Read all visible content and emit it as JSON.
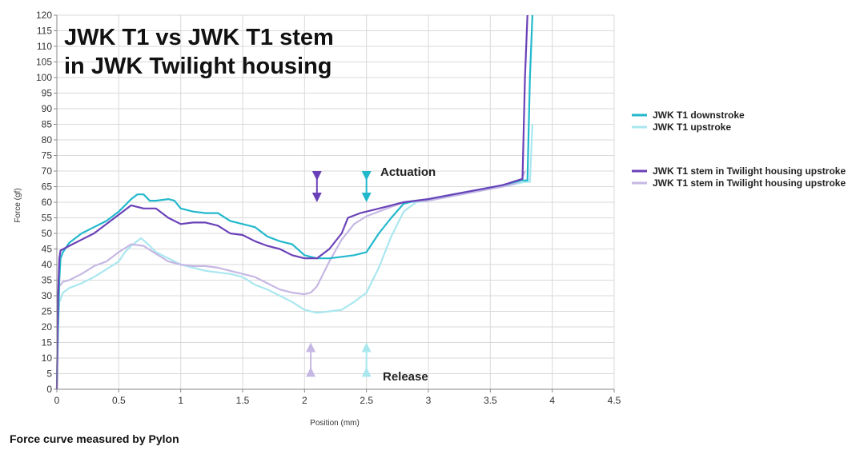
{
  "chart_data": {
    "type": "line",
    "title_lines": [
      "JWK T1 vs JWK T1 stem",
      "in JWK Twilight housing"
    ],
    "xlabel": "Position (mm)",
    "ylabel": "Force (gf)",
    "xlim": [
      0,
      4.5
    ],
    "ylim": [
      0,
      120
    ],
    "x_ticks": [
      "0",
      "0.5",
      "1",
      "1.5",
      "2",
      "2.5",
      "3",
      "3.5",
      "4",
      "4.5"
    ],
    "y_ticks": [
      "0",
      "5",
      "10",
      "15",
      "20",
      "25",
      "30",
      "35",
      "40",
      "45",
      "50",
      "55",
      "60",
      "65",
      "70",
      "75",
      "80",
      "85",
      "90",
      "95",
      "100",
      "105",
      "110",
      "115",
      "120"
    ],
    "grid": true,
    "legend_position": "right",
    "series": [
      {
        "name": "JWK T1 downstroke",
        "color": "#22b8cc",
        "points": [
          [
            0,
            2
          ],
          [
            0.01,
            20
          ],
          [
            0.02,
            35
          ],
          [
            0.03,
            42
          ],
          [
            0.05,
            44
          ],
          [
            0.1,
            47
          ],
          [
            0.2,
            50
          ],
          [
            0.3,
            52
          ],
          [
            0.4,
            54
          ],
          [
            0.5,
            57
          ],
          [
            0.55,
            59
          ],
          [
            0.6,
            61
          ],
          [
            0.65,
            62.5
          ],
          [
            0.7,
            62.5
          ],
          [
            0.75,
            60.5
          ],
          [
            0.8,
            60.5
          ],
          [
            0.9,
            61
          ],
          [
            0.95,
            60.5
          ],
          [
            1.0,
            58
          ],
          [
            1.1,
            57
          ],
          [
            1.2,
            56.5
          ],
          [
            1.3,
            56.5
          ],
          [
            1.4,
            54
          ],
          [
            1.5,
            53
          ],
          [
            1.6,
            52
          ],
          [
            1.7,
            49
          ],
          [
            1.8,
            47.5
          ],
          [
            1.9,
            46.5
          ],
          [
            2.0,
            43
          ],
          [
            2.1,
            42
          ],
          [
            2.2,
            42
          ],
          [
            2.3,
            42.5
          ],
          [
            2.4,
            43
          ],
          [
            2.5,
            44
          ],
          [
            2.6,
            50
          ],
          [
            2.7,
            55
          ],
          [
            2.8,
            59.5
          ],
          [
            2.9,
            60.5
          ],
          [
            3.0,
            61
          ],
          [
            3.2,
            62.5
          ],
          [
            3.4,
            64
          ],
          [
            3.6,
            65.5
          ],
          [
            3.75,
            67
          ],
          [
            3.8,
            67
          ],
          [
            3.82,
            100
          ],
          [
            3.84,
            120
          ]
        ]
      },
      {
        "name": "JWK T1 upstroke",
        "color": "#a9e7ef",
        "points": [
          [
            0,
            0
          ],
          [
            0.01,
            20
          ],
          [
            0.02,
            28
          ],
          [
            0.05,
            31
          ],
          [
            0.1,
            32.5
          ],
          [
            0.2,
            34
          ],
          [
            0.3,
            36
          ],
          [
            0.4,
            38.5
          ],
          [
            0.5,
            41
          ],
          [
            0.55,
            44
          ],
          [
            0.6,
            46
          ],
          [
            0.68,
            48.5
          ],
          [
            0.75,
            46
          ],
          [
            0.8,
            44
          ],
          [
            0.9,
            42
          ],
          [
            1.0,
            40
          ],
          [
            1.1,
            39
          ],
          [
            1.2,
            38
          ],
          [
            1.3,
            37.5
          ],
          [
            1.4,
            37
          ],
          [
            1.5,
            36
          ],
          [
            1.6,
            33.5
          ],
          [
            1.7,
            32
          ],
          [
            1.8,
            30
          ],
          [
            1.9,
            28
          ],
          [
            2.0,
            25.5
          ],
          [
            2.1,
            24.5
          ],
          [
            2.2,
            25
          ],
          [
            2.3,
            25.5
          ],
          [
            2.4,
            28
          ],
          [
            2.5,
            31
          ],
          [
            2.6,
            39
          ],
          [
            2.7,
            49
          ],
          [
            2.8,
            57
          ],
          [
            2.9,
            60
          ],
          [
            3.0,
            60.5
          ],
          [
            3.2,
            62
          ],
          [
            3.4,
            63.5
          ],
          [
            3.6,
            65
          ],
          [
            3.78,
            66.5
          ],
          [
            3.82,
            66.5
          ],
          [
            3.84,
            85
          ]
        ]
      },
      {
        "name": "JWK T1 stem in Twilight housing upstroke",
        "color": "#6a41b8",
        "points": [
          [
            0,
            0
          ],
          [
            0.01,
            30
          ],
          [
            0.02,
            42
          ],
          [
            0.03,
            44.5
          ],
          [
            0.1,
            46
          ],
          [
            0.2,
            48
          ],
          [
            0.3,
            50
          ],
          [
            0.4,
            53
          ],
          [
            0.5,
            56
          ],
          [
            0.6,
            59
          ],
          [
            0.7,
            58
          ],
          [
            0.8,
            58
          ],
          [
            0.9,
            55
          ],
          [
            1.0,
            53
          ],
          [
            1.1,
            53.5
          ],
          [
            1.2,
            53.5
          ],
          [
            1.3,
            52.5
          ],
          [
            1.4,
            50
          ],
          [
            1.5,
            49.5
          ],
          [
            1.6,
            47.5
          ],
          [
            1.7,
            46
          ],
          [
            1.8,
            45
          ],
          [
            1.9,
            43
          ],
          [
            2.0,
            42
          ],
          [
            2.1,
            42
          ],
          [
            2.2,
            45
          ],
          [
            2.3,
            50
          ],
          [
            2.35,
            55
          ],
          [
            2.45,
            56.5
          ],
          [
            2.55,
            57.5
          ],
          [
            2.65,
            58.5
          ],
          [
            2.8,
            60
          ],
          [
            3.0,
            61
          ],
          [
            3.2,
            62.5
          ],
          [
            3.4,
            64
          ],
          [
            3.6,
            65.5
          ],
          [
            3.72,
            67
          ],
          [
            3.76,
            67.5
          ],
          [
            3.78,
            100
          ],
          [
            3.8,
            120
          ]
        ]
      },
      {
        "name": "JWK T1 stem in Twilight housing upstroke",
        "color": "#c6b8e4",
        "points": [
          [
            0,
            0
          ],
          [
            0.01,
            25
          ],
          [
            0.02,
            33
          ],
          [
            0.05,
            34.5
          ],
          [
            0.1,
            35
          ],
          [
            0.2,
            37
          ],
          [
            0.3,
            39.5
          ],
          [
            0.4,
            41
          ],
          [
            0.5,
            44
          ],
          [
            0.6,
            46.5
          ],
          [
            0.7,
            46
          ],
          [
            0.8,
            43.5
          ],
          [
            0.9,
            41
          ],
          [
            1.0,
            40
          ],
          [
            1.1,
            39.5
          ],
          [
            1.2,
            39.5
          ],
          [
            1.3,
            39
          ],
          [
            1.4,
            38
          ],
          [
            1.5,
            37
          ],
          [
            1.6,
            36
          ],
          [
            1.7,
            34
          ],
          [
            1.8,
            32
          ],
          [
            1.9,
            31
          ],
          [
            2.0,
            30.5
          ],
          [
            2.05,
            31
          ],
          [
            2.1,
            33
          ],
          [
            2.2,
            41
          ],
          [
            2.3,
            48
          ],
          [
            2.4,
            53
          ],
          [
            2.5,
            55.5
          ],
          [
            2.6,
            57
          ],
          [
            2.7,
            58.5
          ],
          [
            2.8,
            60
          ],
          [
            3.0,
            60.5
          ],
          [
            3.2,
            62
          ],
          [
            3.4,
            63.5
          ],
          [
            3.6,
            65
          ],
          [
            3.7,
            66
          ],
          [
            3.75,
            67
          ],
          [
            3.78,
            70
          ]
        ]
      }
    ],
    "annotations": {
      "actuation_label": "Actuation",
      "release_label": "Release",
      "arrows": [
        {
          "name": "actuation-arrow-stem",
          "x": 2.1,
          "y_from": 70,
          "y_to": 60,
          "direction": "down",
          "color": "#6a41b8"
        },
        {
          "name": "actuation-arrow-t1",
          "x": 2.5,
          "y_from": 70,
          "y_to": 60,
          "direction": "down",
          "color": "#22b8cc"
        },
        {
          "name": "release-arrow-stem",
          "x": 2.05,
          "y_from": 4,
          "y_to": 15,
          "direction": "up",
          "color": "#c6b8e4"
        },
        {
          "name": "release-arrow-t1",
          "x": 2.5,
          "y_from": 4,
          "y_to": 15,
          "direction": "up",
          "color": "#a9e7ef"
        }
      ]
    }
  },
  "footer": "Force curve measured by Pylon"
}
